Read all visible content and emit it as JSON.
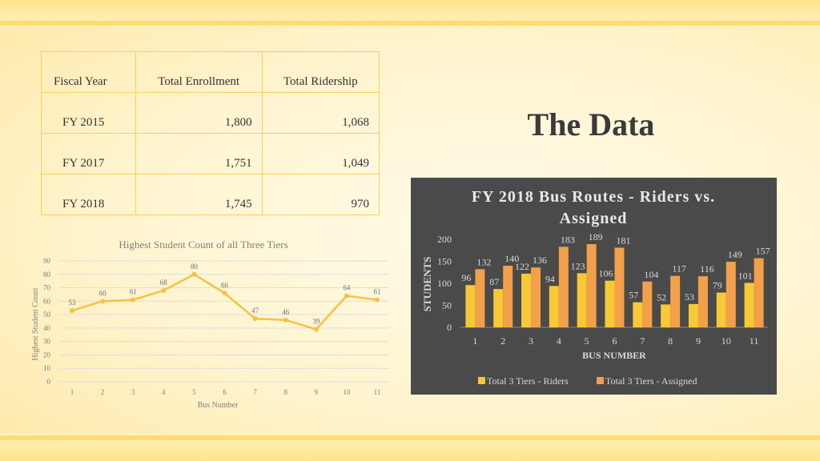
{
  "slide": {
    "title": "The Data"
  },
  "table": {
    "headers": [
      "Fiscal Year",
      "Total Enrollment",
      "Total Ridership"
    ],
    "rows": [
      [
        "FY 2015",
        "1,800",
        "1,068"
      ],
      [
        "FY 2017",
        "1,751",
        "1,049"
      ],
      [
        "FY 2018",
        "1,745",
        "970"
      ]
    ]
  },
  "chart_data": [
    {
      "type": "line",
      "title": "Highest Student Count of all Three Tiers",
      "xlabel": "Bus Number",
      "ylabel": "Highest Student Count",
      "x": [
        1,
        2,
        3,
        4,
        5,
        6,
        7,
        8,
        9,
        10,
        11
      ],
      "y": [
        53,
        60,
        61,
        68,
        80,
        66,
        47,
        46,
        39,
        64,
        61
      ],
      "ylim": [
        0,
        90
      ],
      "yticks": [
        0,
        10,
        20,
        30,
        40,
        50,
        60,
        70,
        80,
        90
      ],
      "grid": true,
      "colors": {
        "line": "#f5c242",
        "grid": "#dddddd",
        "text": "#808080"
      }
    },
    {
      "type": "bar",
      "title": "FY 2018 Bus Routes - Riders vs. Assigned",
      "xlabel": "BUS NUMBER",
      "ylabel": "STUDENTS",
      "categories": [
        "1",
        "2",
        "3",
        "4",
        "5",
        "6",
        "7",
        "8",
        "9",
        "10",
        "11"
      ],
      "series": [
        {
          "name": "Total 3 Tiers - Riders",
          "values": [
            96,
            87,
            122,
            94,
            123,
            106,
            57,
            52,
            53,
            79,
            101
          ],
          "color": "#f7c934"
        },
        {
          "name": "Total 3 Tiers - Assigned",
          "values": [
            132,
            140,
            136,
            183,
            189,
            181,
            104,
            117,
            116,
            149,
            157
          ],
          "color": "#f2a04a"
        }
      ],
      "ylim": [
        0,
        200
      ],
      "yticks": [
        0,
        50,
        100,
        150,
        200
      ],
      "legend": "bottom",
      "grid": false,
      "colors": {
        "background": "#4a4a4a",
        "text": "#d9d9d9",
        "title": "#e8e8e8"
      }
    }
  ]
}
